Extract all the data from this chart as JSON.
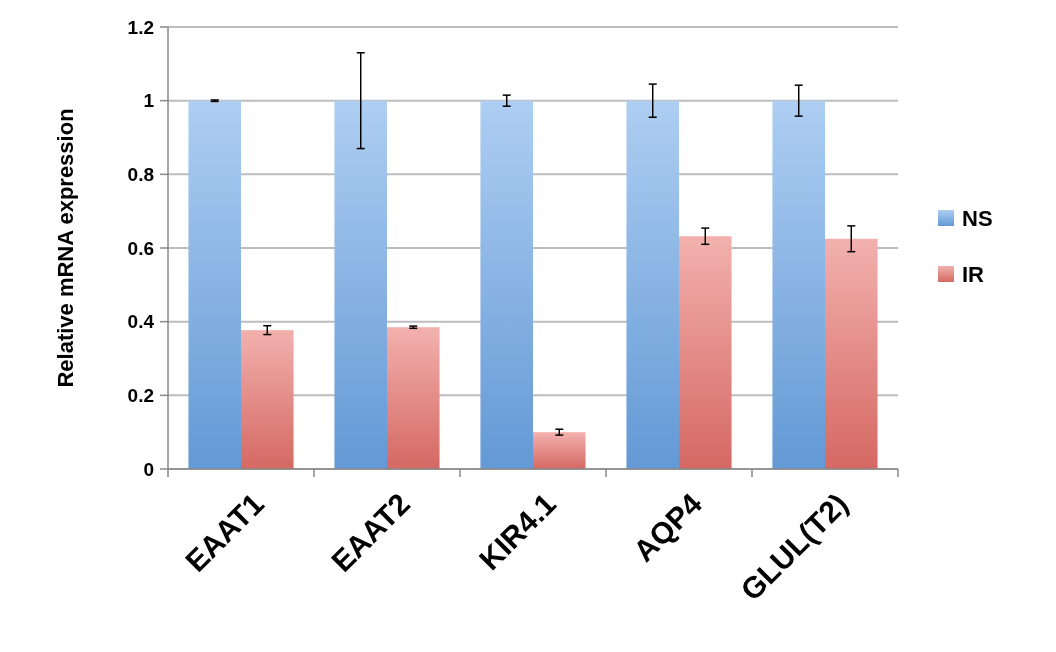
{
  "chart_data": {
    "type": "bar",
    "ylabel": "Relative mRNA expression",
    "categories": [
      "EAAT1",
      "EAAT2",
      "KIR4.1",
      "AQP4",
      "GLUL(T2)"
    ],
    "series": [
      {
        "name": "NS",
        "color": "#6ca6e8",
        "values": [
          1,
          1,
          1,
          1,
          1
        ],
        "errors": [
          0.002,
          0.13,
          0.015,
          0.045,
          0.042
        ]
      },
      {
        "name": "IR",
        "color": "#e8716c",
        "values": [
          0.377,
          0.385,
          0.1,
          0.632,
          0.625
        ],
        "errors": [
          0.012,
          0.003,
          0.008,
          0.022,
          0.035
        ]
      }
    ],
    "ylim": [
      0,
      1.2
    ],
    "yticks": [
      0,
      0.2,
      0.4,
      0.6,
      0.8,
      1,
      1.2
    ],
    "grid": "y",
    "legend": "right"
  }
}
